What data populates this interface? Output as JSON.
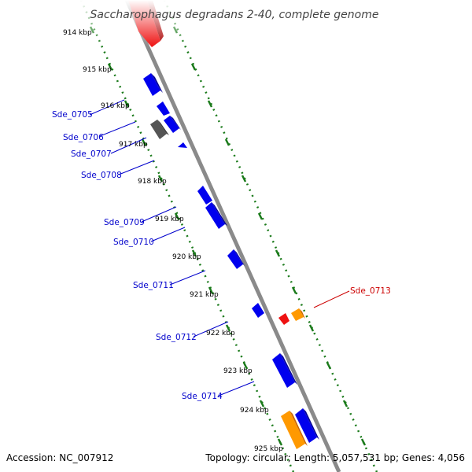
{
  "title": "Saccharophagus degradans 2-40, complete genome",
  "accession": "Accession: NC_007912",
  "summary": "Topology: circular; Length: 5,057,531 bp; Genes: 4,056",
  "colors": {
    "backbone": "#888888",
    "scale_dots": "#1a7a1a",
    "plus_gene": "#0000ee",
    "minus_gene": "#dd0000",
    "orange_gene": "#ff9900",
    "gray_gene": "#555555",
    "label_blue": "#0000cc",
    "label_red": "#cc0000"
  },
  "ticks": [
    "914 kbp",
    "915 kbp",
    "916 kbp",
    "917 kbp",
    "918 kbp",
    "919 kbp",
    "920 kbp",
    "921 kbp",
    "922 kbp",
    "923 kbp",
    "924 kbp",
    "925 kbp"
  ],
  "gene_labels": [
    {
      "text": "Sde_0705",
      "color": "blue"
    },
    {
      "text": "Sde_0706",
      "color": "blue"
    },
    {
      "text": "Sde_0707",
      "color": "blue"
    },
    {
      "text": "Sde_0708",
      "color": "blue"
    },
    {
      "text": "Sde_0709",
      "color": "blue"
    },
    {
      "text": "Sde_0710",
      "color": "blue"
    },
    {
      "text": "Sde_0711",
      "color": "blue"
    },
    {
      "text": "Sde_0712",
      "color": "blue"
    },
    {
      "text": "Sde_0714",
      "color": "blue"
    },
    {
      "text": "Sde_0713",
      "color": "red"
    }
  ]
}
